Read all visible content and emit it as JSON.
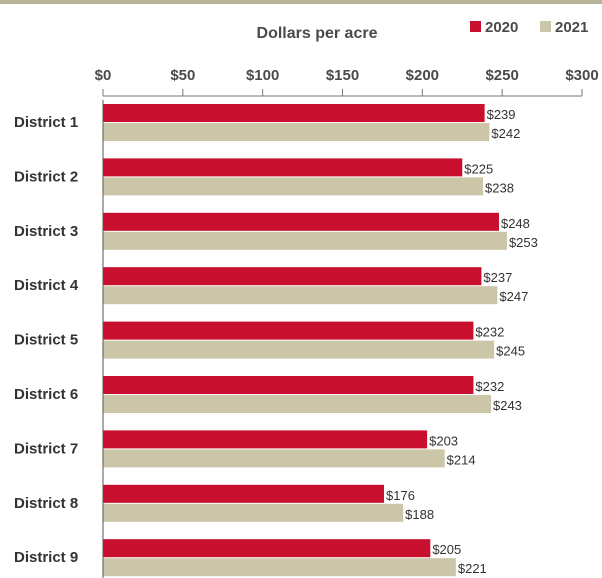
{
  "chart_data": {
    "type": "bar",
    "orientation": "horizontal",
    "xlabel": "Dollars per acre",
    "xlim": [
      0,
      300
    ],
    "xticks": [
      0,
      50,
      100,
      150,
      200,
      250,
      300
    ],
    "xtick_labels": [
      "$0",
      "$50",
      "$100",
      "$150",
      "$200",
      "$250",
      "$300"
    ],
    "categories": [
      "District 1",
      "District 2",
      "District 3",
      "District 4",
      "District 5",
      "District 6",
      "District 7",
      "District 8",
      "District 9"
    ],
    "series": [
      {
        "name": "2020",
        "color": "#c8102e",
        "values": [
          239,
          225,
          248,
          237,
          232,
          232,
          203,
          176,
          205
        ],
        "labels": [
          "$239",
          "$225",
          "$248",
          "$237",
          "$232",
          "$232",
          "$203",
          "$176",
          "$205"
        ]
      },
      {
        "name": "2021",
        "color": "#cbc6a7",
        "values": [
          242,
          238,
          253,
          247,
          245,
          243,
          214,
          188,
          221
        ],
        "labels": [
          "$242",
          "$238",
          "$253",
          "$247",
          "$245",
          "$243",
          "$214",
          "$188",
          "$221"
        ]
      }
    ],
    "legend_position": "top-right",
    "grid": "vertical tick marks only"
  }
}
